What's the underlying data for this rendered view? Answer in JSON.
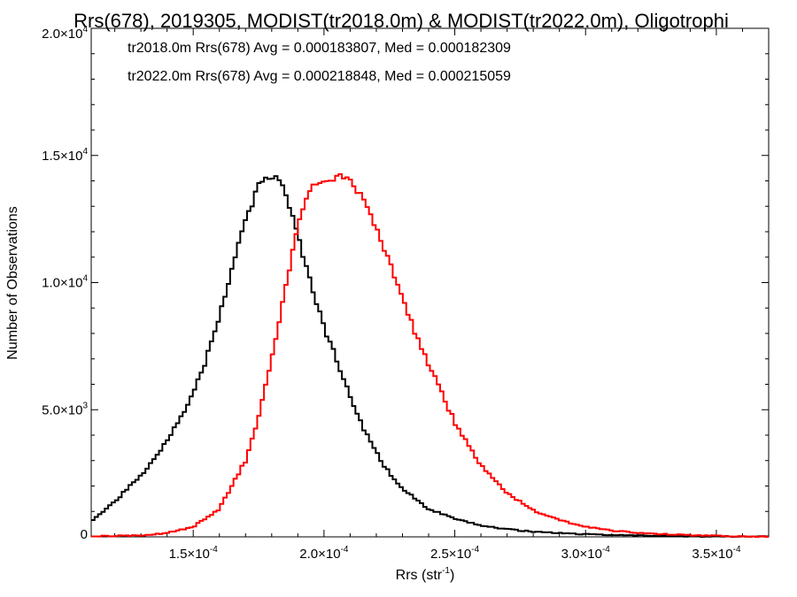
{
  "chart_data": {
    "type": "line",
    "title": "Rrs(678), 2019305, MODIST(tr2018.0m) & MODIST(tr2022.0m), Oligotrophi",
    "xlabel": "Rrs (str",
    "xlabel_exp": "-1",
    "xlabel_close": ")",
    "ylabel": "Number of Observations",
    "xlim": [
      0.000111,
      0.00037
    ],
    "ylim": [
      0,
      20000
    ],
    "grid": false,
    "x_ticks": [
      {
        "value": 0.00015,
        "mant": "1.5",
        "exp": "-4"
      },
      {
        "value": 0.0002,
        "mant": "2.0",
        "exp": "-4"
      },
      {
        "value": 0.00025,
        "mant": "2.5",
        "exp": "-4"
      },
      {
        "value": 0.0003,
        "mant": "3.0",
        "exp": "-4"
      },
      {
        "value": 0.00035,
        "mant": "3.5",
        "exp": "-4"
      }
    ],
    "y_ticks": [
      {
        "value": 0,
        "mant": "0",
        "exp": ""
      },
      {
        "value": 5000,
        "mant": "5.0",
        "exp": "3"
      },
      {
        "value": 10000,
        "mant": "1.0",
        "exp": "4"
      },
      {
        "value": 15000,
        "mant": "1.5",
        "exp": "4"
      },
      {
        "value": 20000,
        "mant": "2.0",
        "exp": "4"
      }
    ],
    "times_sign": "×10",
    "annotations": [
      {
        "text": "tr2018.0m Rrs(678) Avg = 0.000183807, Med = 0.000182309",
        "color": "#000000"
      },
      {
        "text": "tr2022.0m Rrs(678) Avg = 0.000218848, Med = 0.000215059",
        "color": "#ff0000"
      }
    ],
    "series": [
      {
        "color": "#000000",
        "x": [
          0.000111,
          0.00012,
          0.00013,
          0.00014,
          0.00015,
          0.000155,
          0.00016,
          0.000165,
          0.00017,
          0.000175,
          0.00018,
          0.000182,
          0.000185,
          0.00019,
          0.000195,
          0.0002,
          0.000205,
          0.00021,
          0.000215,
          0.00022,
          0.000225,
          0.00023,
          0.00024,
          0.00025,
          0.00026,
          0.00027,
          0.00028,
          0.0003,
          0.00032,
          0.00034,
          0.000355,
          0.00037
        ],
        "y": [
          600,
          1400,
          2400,
          3800,
          5600,
          7000,
          8600,
          10700,
          12400,
          13800,
          14200,
          14200,
          13600,
          11800,
          10000,
          8200,
          6900,
          5500,
          4300,
          3300,
          2500,
          1900,
          1100,
          700,
          450,
          300,
          200,
          100,
          50,
          25,
          15,
          10
        ]
      },
      {
        "color": "#ff0000",
        "x": [
          0.000111,
          0.00013,
          0.00014,
          0.00015,
          0.00016,
          0.00017,
          0.000175,
          0.00018,
          0.000185,
          0.00019,
          0.000195,
          0.0002,
          0.000205,
          0.000208,
          0.00021,
          0.000215,
          0.00022,
          0.000225,
          0.00023,
          0.000235,
          0.00024,
          0.00025,
          0.00026,
          0.00027,
          0.00028,
          0.00029,
          0.0003,
          0.00031,
          0.00032,
          0.00034,
          0.000355,
          0.00037
        ],
        "y": [
          20,
          60,
          150,
          400,
          1100,
          3000,
          4700,
          6900,
          9600,
          12300,
          13700,
          14000,
          14100,
          14200,
          14000,
          13300,
          12100,
          10800,
          9300,
          8000,
          6800,
          4500,
          2800,
          1700,
          1050,
          650,
          400,
          250,
          150,
          60,
          30,
          15
        ]
      }
    ]
  }
}
